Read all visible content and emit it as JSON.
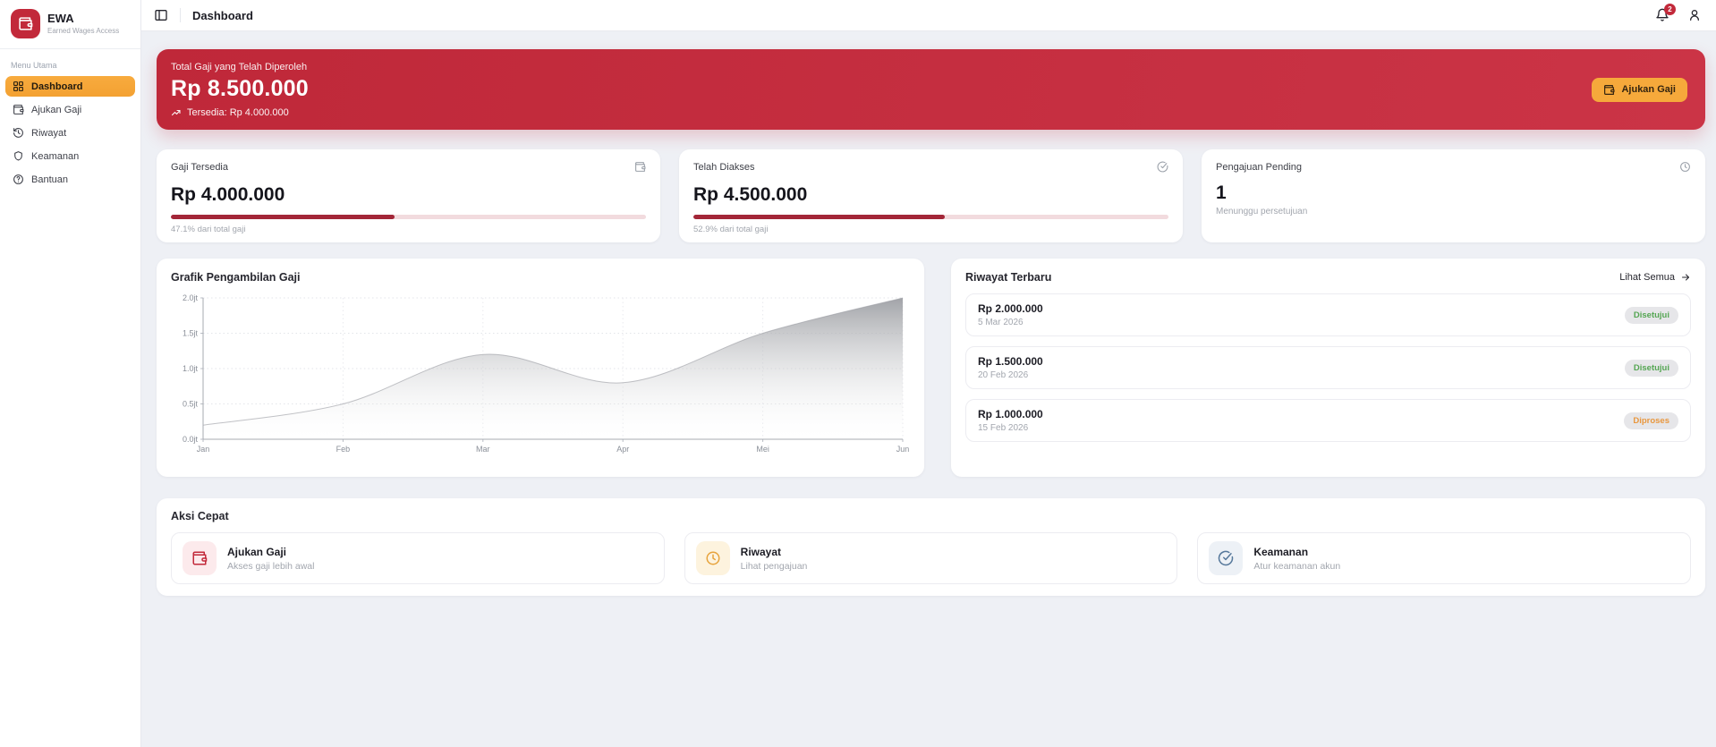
{
  "app": {
    "name": "EWA",
    "tagline": "Earned Wages Access",
    "brand_color": "#c2293a",
    "accent_color": "#f6a93b"
  },
  "header": {
    "title": "Dashboard",
    "notification_count": "2"
  },
  "sidebar": {
    "section_label": "Menu Utama",
    "items": [
      {
        "label": "Dashboard",
        "icon": "grid-icon",
        "active": true
      },
      {
        "label": "Ajukan Gaji",
        "icon": "wallet-icon",
        "active": false
      },
      {
        "label": "Riwayat",
        "icon": "history-icon",
        "active": false
      },
      {
        "label": "Keamanan",
        "icon": "shield-icon",
        "active": false
      },
      {
        "label": "Bantuan",
        "icon": "help-icon",
        "active": false
      }
    ]
  },
  "hero": {
    "label": "Total Gaji yang Telah Diperoleh",
    "amount": "Rp 8.500.000",
    "available": "Tersedia: Rp 4.000.000",
    "cta_label": "Ajukan Gaji"
  },
  "stats": [
    {
      "title": "Gaji Tersedia",
      "value": "Rp 4.000.000",
      "caption": "47.1% dari total gaji",
      "progress": 47.1,
      "icon": "wallet-icon"
    },
    {
      "title": "Telah Diakses",
      "value": "Rp 4.500.000",
      "caption": "52.9% dari total gaji",
      "progress": 52.9,
      "icon": "check-circle-icon"
    },
    {
      "title": "Pengajuan Pending",
      "value": "1",
      "caption": "Menunggu persetujuan",
      "progress": null,
      "icon": "clock-icon"
    }
  ],
  "chart_data": {
    "type": "area",
    "title": "Grafik Pengambilan Gaji",
    "x": [
      "Jan",
      "Feb",
      "Mar",
      "Apr",
      "Mei",
      "Jun"
    ],
    "values_jt": [
      0.2,
      0.5,
      1.2,
      0.8,
      1.5,
      2.0
    ],
    "y_ticks": [
      "2.0jt",
      "1.5jt",
      "1.0jt",
      "0.5jt",
      "0.0jt"
    ],
    "ylim": [
      0,
      2.0
    ],
    "xlabel": "",
    "ylabel": "",
    "grid": true,
    "legend": false,
    "fill_top_color": "#97999e",
    "fill_bottom_color": "#ffffff"
  },
  "history": {
    "title": "Riwayat Terbaru",
    "view_all_label": "Lihat Semua",
    "items": [
      {
        "amount": "Rp 2.000.000",
        "date": "5 Mar 2026",
        "status": "Disetujui",
        "status_color": "#55a653"
      },
      {
        "amount": "Rp 1.500.000",
        "date": "20 Feb 2026",
        "status": "Disetujui",
        "status_color": "#55a653"
      },
      {
        "amount": "Rp 1.000.000",
        "date": "15 Feb 2026",
        "status": "Diproses",
        "status_color": "#e9973e"
      }
    ]
  },
  "quick_actions": {
    "title": "Aksi Cepat",
    "items": [
      {
        "title": "Ajukan Gaji",
        "subtitle": "Akses gaji lebih awal",
        "icon": "wallet-icon",
        "icon_color": "#c2293a",
        "icon_bg": "#fceaec"
      },
      {
        "title": "Riwayat",
        "subtitle": "Lihat pengajuan",
        "icon": "clock-icon",
        "icon_color": "#e7a33c",
        "icon_bg": "#fdf3de"
      },
      {
        "title": "Keamanan",
        "subtitle": "Atur keamanan akun",
        "icon": "shield-check-icon",
        "icon_color": "#56789b",
        "icon_bg": "#edf1f6"
      }
    ]
  }
}
